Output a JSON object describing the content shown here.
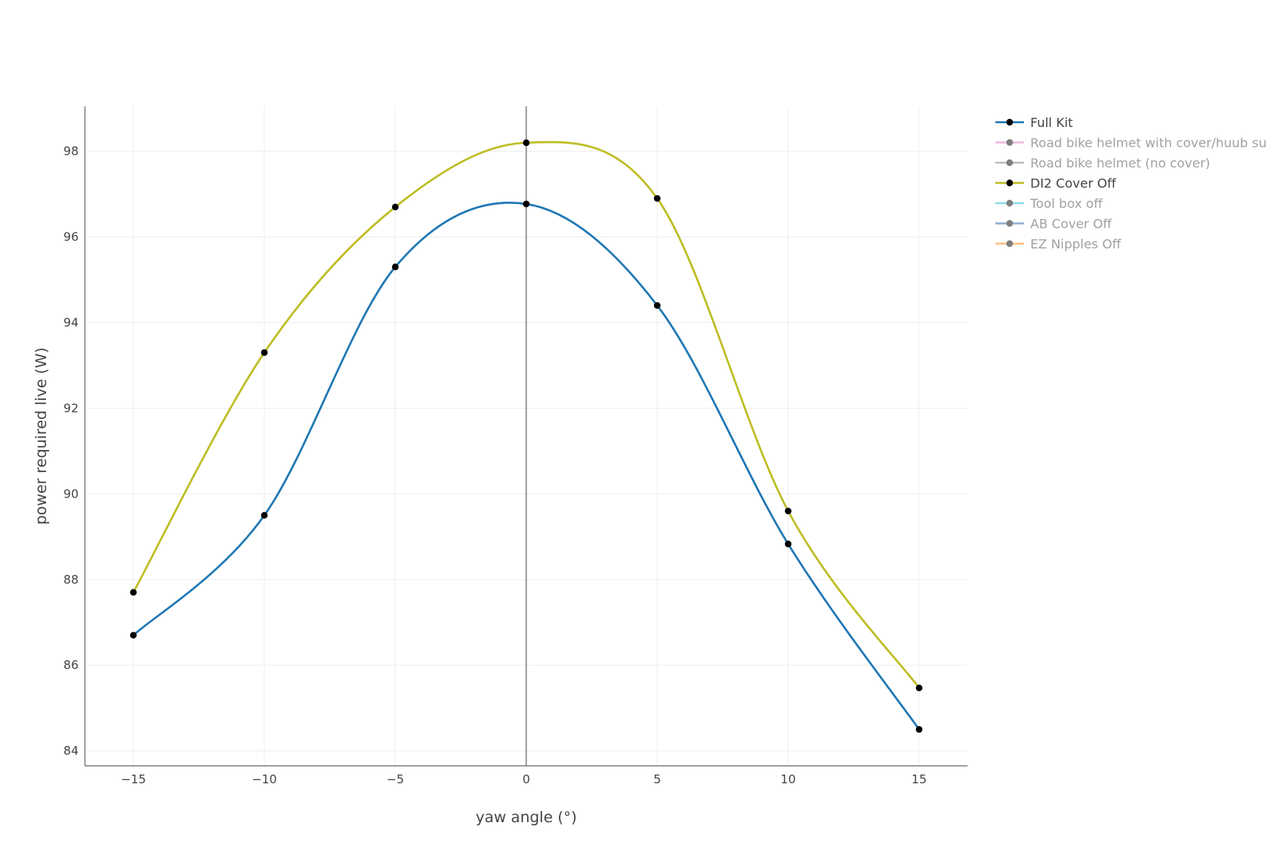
{
  "chart_data": {
    "type": "line",
    "xlabel": "yaw angle (°)",
    "ylabel": "power required live (W)",
    "xlim": [
      -16.85,
      16.85
    ],
    "ylim": [
      83.65,
      99.05
    ],
    "x_ticks": [
      -15,
      -10,
      -5,
      0,
      5,
      10,
      15
    ],
    "x_tick_labels": [
      "−15",
      "−10",
      "−5",
      "0",
      "5",
      "10",
      "15"
    ],
    "y_ticks": [
      84,
      86,
      88,
      90,
      92,
      94,
      96,
      98
    ],
    "y_tick_labels": [
      "84",
      "86",
      "88",
      "90",
      "92",
      "94",
      "96",
      "98"
    ],
    "grid": true,
    "zero_line": true,
    "legend_position": "top-right",
    "series": [
      {
        "name": "Full Kit",
        "color": "#1f77b4",
        "visible": true,
        "x": [
          -15,
          -10,
          -5,
          0,
          5,
          10,
          15
        ],
        "y": [
          86.7,
          89.5,
          95.3,
          96.77,
          94.4,
          88.83,
          84.5
        ]
      },
      {
        "name": "Road bike helmet with cover/huub su",
        "color": "#e377c2",
        "visible": false,
        "x": [],
        "y": []
      },
      {
        "name": "Road bike helmet (no cover)",
        "color": "#7f7f7f",
        "visible": false,
        "x": [],
        "y": []
      },
      {
        "name": "DI2 Cover Off",
        "color": "#bcbd22",
        "visible": true,
        "x": [
          -15,
          -10,
          -5,
          0,
          5,
          10,
          15
        ],
        "y": [
          87.7,
          93.3,
          96.7,
          98.2,
          96.9,
          89.6,
          85.47
        ]
      },
      {
        "name": "Tool box off",
        "color": "#17becf",
        "visible": false,
        "x": [],
        "y": []
      },
      {
        "name": "AB Cover Off",
        "color": "#1f5f9f",
        "visible": false,
        "x": [],
        "y": []
      },
      {
        "name": "EZ Nipples Off",
        "color": "#ff7f0e",
        "visible": false,
        "x": [],
        "y": []
      }
    ]
  }
}
